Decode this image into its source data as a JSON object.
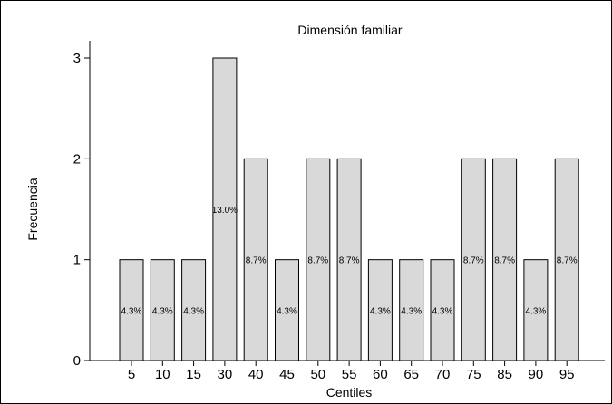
{
  "chart_data": {
    "type": "bar",
    "title": "Dimensión familiar",
    "xlabel": "Centiles",
    "ylabel": "Frecuencia",
    "categories": [
      "5",
      "10",
      "15",
      "30",
      "40",
      "45",
      "50",
      "55",
      "60",
      "65",
      "70",
      "75",
      "85",
      "90",
      "95"
    ],
    "values": [
      1,
      1,
      1,
      3,
      2,
      1,
      2,
      2,
      1,
      1,
      1,
      2,
      2,
      1,
      2
    ],
    "data_labels": [
      "4.3%",
      "4.3%",
      "4.3%",
      "13.0%",
      "8.7%",
      "4.3%",
      "8.7%",
      "8.7%",
      "4.3%",
      "4.3%",
      "4.3%",
      "8.7%",
      "8.7%",
      "4.3%",
      "8.7%"
    ],
    "yticks": [
      0,
      1,
      2,
      3
    ],
    "ylim": [
      0,
      3
    ],
    "grid": false,
    "bar_color": "#d9d9d9",
    "edge_color": "#000000"
  }
}
